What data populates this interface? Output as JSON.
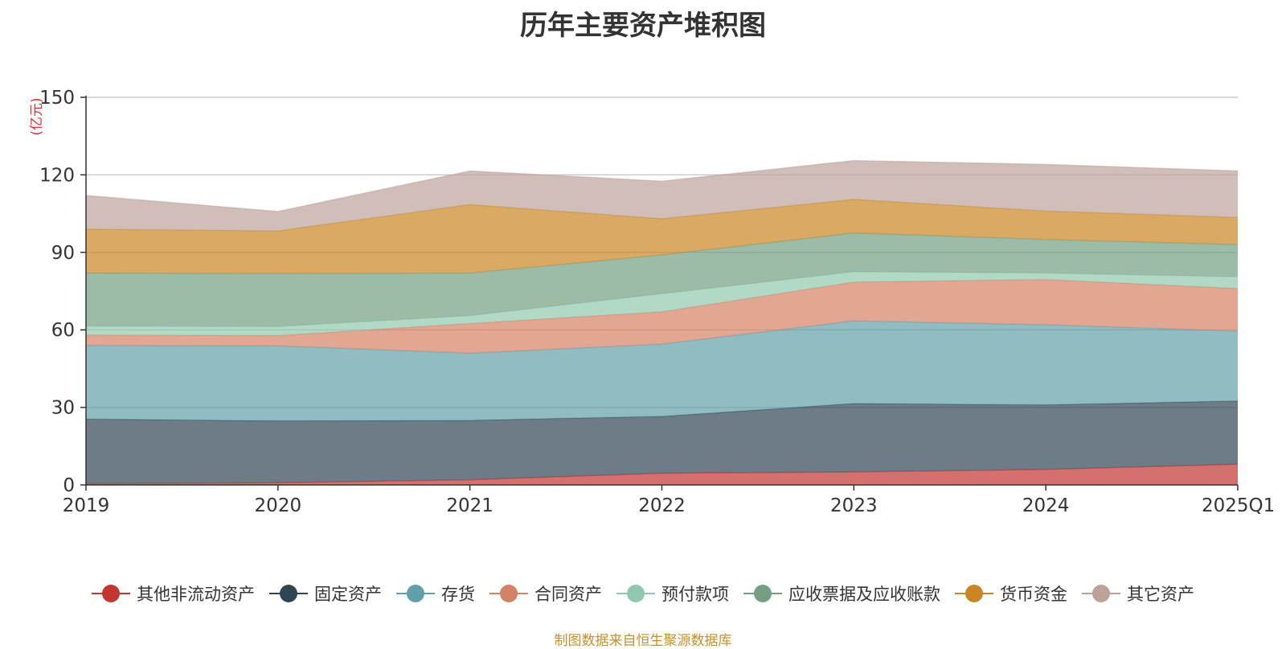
{
  "title": "历年主要资产堆积图",
  "source_note": "制图数据来自恒生聚源数据库",
  "chart_data": {
    "type": "area",
    "stacked": true,
    "title": "历年主要资产堆积图",
    "ylabel": "(亿元)",
    "xlabel": "",
    "categories": [
      "2019",
      "2020",
      "2021",
      "2022",
      "2023",
      "2024",
      "2025Q1"
    ],
    "ylim": [
      0,
      150
    ],
    "yticks": [
      0,
      30,
      60,
      90,
      120,
      150
    ],
    "grid": true,
    "legend_position": "bottom",
    "series": [
      {
        "name": "其他非流动资产",
        "color": "#c23531",
        "values": [
          0.5,
          0.8,
          2.0,
          4.5,
          5.0,
          6.0,
          8.0
        ]
      },
      {
        "name": "固定资产",
        "color": "#2f4554",
        "values": [
          25.0,
          24.0,
          23.0,
          22.0,
          26.5,
          25.0,
          24.5
        ]
      },
      {
        "name": "存货",
        "color": "#61a0a8",
        "values": [
          28.5,
          29.0,
          26.0,
          28.0,
          32.0,
          31.0,
          27.0
        ]
      },
      {
        "name": "合同资产",
        "color": "#d48265",
        "values": [
          4.0,
          4.0,
          11.5,
          12.5,
          15.0,
          17.5,
          16.5
        ]
      },
      {
        "name": "预付款项",
        "color": "#91c7ae",
        "values": [
          3.5,
          3.5,
          3.0,
          7.0,
          4.0,
          2.5,
          4.5
        ]
      },
      {
        "name": "应收票据及应收账款",
        "color": "#749f83",
        "values": [
          20.5,
          20.5,
          16.5,
          15.0,
          15.0,
          13.0,
          12.5
        ]
      },
      {
        "name": "货币资金",
        "color": "#ca8622",
        "values": [
          17.0,
          16.5,
          26.5,
          14.0,
          13.0,
          11.0,
          10.5
        ]
      },
      {
        "name": "其它资产",
        "color": "#bda29a",
        "values": [
          13.0,
          7.5,
          13.0,
          14.5,
          15.0,
          18.0,
          18.0
        ]
      }
    ]
  }
}
